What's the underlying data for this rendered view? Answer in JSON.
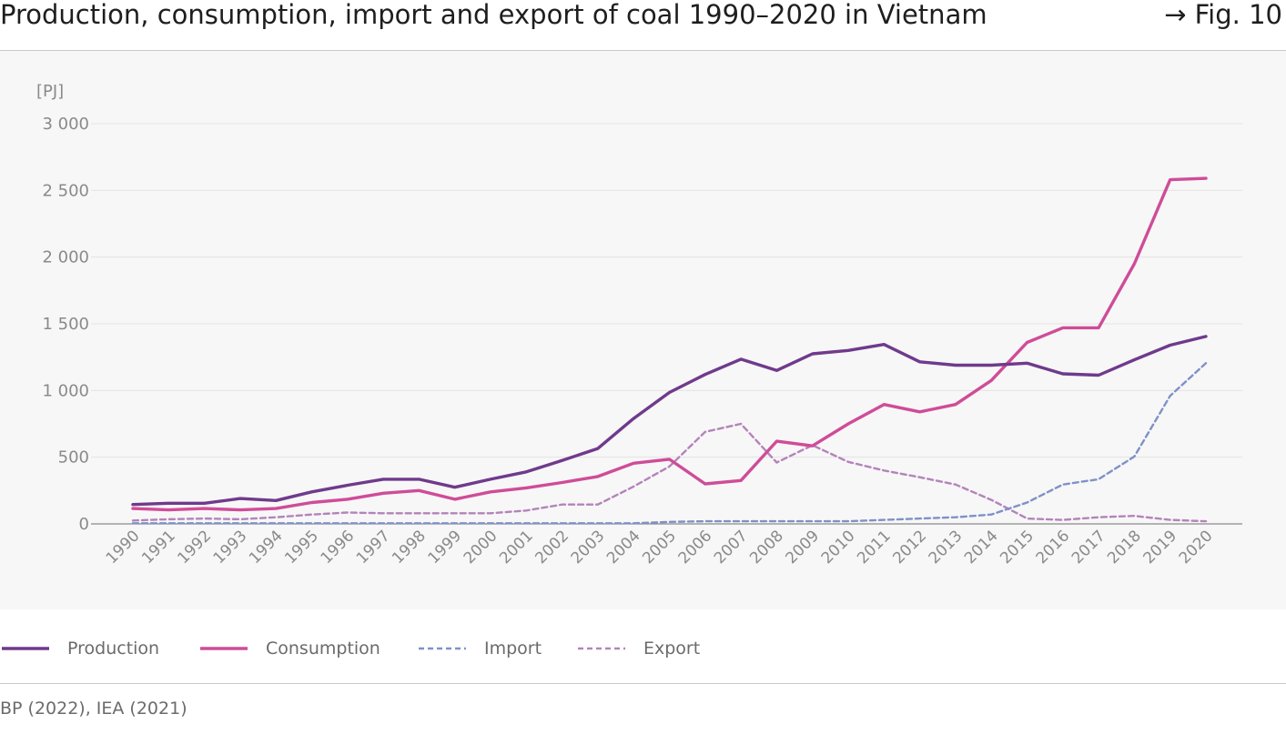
{
  "header": {
    "title": "Production, consumption, import and export of coal 1990–2020 in Vietnam",
    "fig_ref": "→ Fig. 10"
  },
  "footer": {
    "source": "BP (2022), IEA (2021)"
  },
  "chart_data": {
    "type": "line",
    "title": "Production, consumption, import and export of coal 1990–2020 in Vietnam",
    "ylabel": "[PJ]",
    "xlabel": "",
    "ylim": [
      0,
      3000
    ],
    "yticks": [
      0,
      500,
      1000,
      1500,
      2000,
      2500,
      3000
    ],
    "ytick_labels": [
      "0",
      "500",
      "1 000",
      "1 500",
      "2 000",
      "2 500",
      "3 000"
    ],
    "grid": true,
    "legend_position": "bottom",
    "x": [
      "1990",
      "1991",
      "1992",
      "1993",
      "1994",
      "1995",
      "1996",
      "1997",
      "1998",
      "1999",
      "2000",
      "2001",
      "2002",
      "2003",
      "2004",
      "2005",
      "2006",
      "2007",
      "2008",
      "2009",
      "2010",
      "2011",
      "2012",
      "2013",
      "2014",
      "2015",
      "2016",
      "2017",
      "2018",
      "2019",
      "2020"
    ],
    "series": [
      {
        "name": "Production",
        "color": "#6f3a8c",
        "dash": "solid",
        "values": [
          145,
          155,
          155,
          190,
          175,
          240,
          290,
          335,
          335,
          275,
          335,
          390,
          475,
          565,
          790,
          985,
          1120,
          1235,
          1150,
          1275,
          1300,
          1345,
          1215,
          1190,
          1190,
          1205,
          1125,
          1115,
          1230,
          1340,
          1405
        ]
      },
      {
        "name": "Consumption",
        "color": "#cf4c98",
        "dash": "solid",
        "values": [
          115,
          105,
          115,
          105,
          115,
          160,
          185,
          230,
          250,
          185,
          240,
          270,
          310,
          355,
          455,
          485,
          300,
          325,
          620,
          585,
          750,
          895,
          840,
          895,
          1075,
          1360,
          1470,
          1470,
          1950,
          2580,
          2590
        ]
      },
      {
        "name": "Import",
        "color": "#7f92c6",
        "dash": "dashed",
        "values": [
          5,
          5,
          5,
          5,
          5,
          5,
          5,
          5,
          5,
          5,
          5,
          5,
          5,
          5,
          5,
          15,
          20,
          20,
          20,
          20,
          20,
          30,
          40,
          50,
          70,
          160,
          295,
          335,
          505,
          960,
          1205
        ]
      },
      {
        "name": "Export",
        "color": "#b483ba",
        "dash": "dashed",
        "values": [
          25,
          35,
          40,
          35,
          50,
          70,
          85,
          80,
          80,
          80,
          80,
          100,
          145,
          145,
          280,
          430,
          690,
          750,
          460,
          590,
          465,
          400,
          350,
          295,
          180,
          40,
          30,
          50,
          60,
          30,
          20
        ]
      }
    ]
  }
}
